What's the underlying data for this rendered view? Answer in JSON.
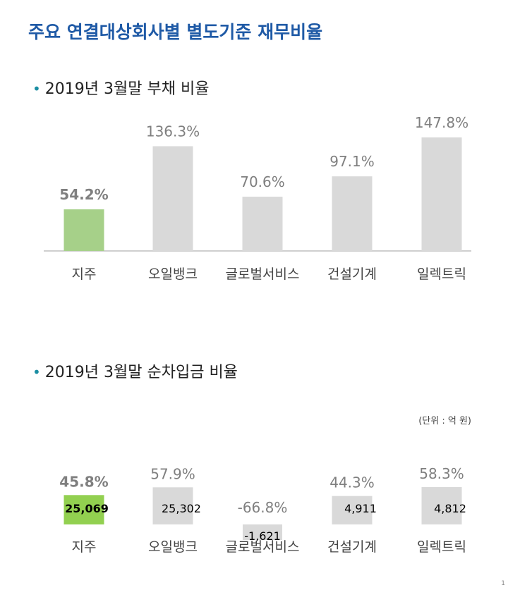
{
  "page": {
    "title": "주요 연결대상회사별 별도기준 재무비율",
    "unit_note": "(단위 : 억 원)",
    "page_number": "1"
  },
  "sections": {
    "debt": {
      "bullet": "•",
      "label": "2019년 3월말 부채 비율"
    },
    "netdebt": {
      "bullet": "•",
      "label": "2019년 3월말 순차입금 비율"
    }
  },
  "colors": {
    "title": "#1f5aa6",
    "bullet": "#1b8ea3",
    "highlight_bar": "#a6d089",
    "highlight_bar_2": "#92d050",
    "gray_bar": "#d9d9d9",
    "label_gray": "#7f7f7f"
  },
  "chart_data": [
    {
      "type": "bar",
      "title": "2019년 3월말 부채 비율",
      "categories": [
        "지주",
        "오일뱅크",
        "글로벌서비스",
        "건설기계",
        "일렉트릭"
      ],
      "values": [
        54.2,
        136.3,
        70.6,
        97.1,
        147.8
      ],
      "value_labels": [
        "54.2%",
        "136.3%",
        "70.6%",
        "97.1%",
        "147.8%"
      ],
      "highlight_index": 0,
      "ylim": [
        0,
        150
      ],
      "grid": false
    },
    {
      "type": "bar",
      "title": "2019년 3월말 순차입금 비율",
      "categories": [
        "지주",
        "오일뱅크",
        "글로벌서비스",
        "건설기계",
        "일렉트릭"
      ],
      "values": [
        45.8,
        57.9,
        -66.8,
        44.3,
        58.3
      ],
      "value_labels": [
        "45.8%",
        "57.9%",
        "-66.8%",
        "44.3%",
        "58.3%"
      ],
      "amounts": [
        25069,
        25302,
        -1621,
        4911,
        4812
      ],
      "amount_labels": [
        "25,069",
        "25,302",
        "-1,621",
        "4,911",
        "4,812"
      ],
      "highlight_index": 0,
      "grid": false
    }
  ]
}
